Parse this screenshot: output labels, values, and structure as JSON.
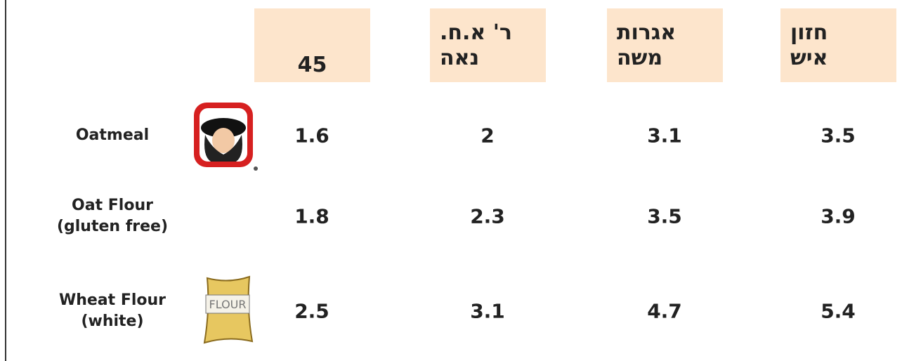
{
  "table": {
    "headers": [
      [
        "45"
      ],
      [
        "ר' א.ח.",
        "נאה"
      ],
      [
        "אגרות",
        "משה"
      ],
      [
        "חזון",
        "איש"
      ]
    ],
    "rows": [
      {
        "label": [
          "Oatmeal"
        ],
        "values": [
          1.6,
          2,
          3.1,
          3.5
        ]
      },
      {
        "label": [
          "Oat Flour",
          "(gluten free)"
        ],
        "values": [
          1.8,
          2.3,
          3.5,
          3.9
        ]
      },
      {
        "label": [
          "Wheat Flour",
          "(white)"
        ],
        "values": [
          2.5,
          3.1,
          4.7,
          5.4
        ]
      }
    ]
  }
}
